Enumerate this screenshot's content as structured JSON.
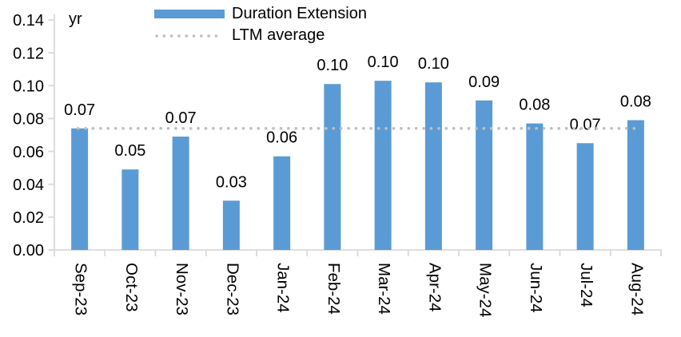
{
  "chart_data": {
    "type": "bar",
    "unit_label": "yr",
    "categories": [
      "Sep-23",
      "Oct-23",
      "Nov-23",
      "Dec-23",
      "Jan-24",
      "Feb-24",
      "Mar-24",
      "Apr-24",
      "May-24",
      "Jun-24",
      "Jul-24",
      "Aug-24"
    ],
    "series": [
      {
        "name": "Duration Extension",
        "kind": "bar",
        "color": "#5B9BD5",
        "values": [
          0.074,
          0.049,
          0.069,
          0.03,
          0.057,
          0.101,
          0.103,
          0.102,
          0.091,
          0.077,
          0.065,
          0.079
        ],
        "value_labels": [
          "0.07",
          "0.05",
          "0.07",
          "0.03",
          "0.06",
          "0.10",
          "0.10",
          "0.10",
          "0.09",
          "0.08",
          "0.07",
          "0.08"
        ]
      },
      {
        "name": "LTM average",
        "kind": "dotted-line",
        "color": "#BFBFBF",
        "value": 0.074
      }
    ],
    "y_axis": {
      "min": 0,
      "max": 0.14,
      "step": 0.02,
      "tick_labels": [
        "0.00",
        "0.02",
        "0.04",
        "0.06",
        "0.08",
        "0.10",
        "0.12",
        "0.14"
      ]
    },
    "legend": {
      "position": "top-center"
    },
    "grid": "off",
    "colors": {
      "axis": "#D9D9D9",
      "text": "#000000",
      "background": "#FFFFFF"
    }
  }
}
